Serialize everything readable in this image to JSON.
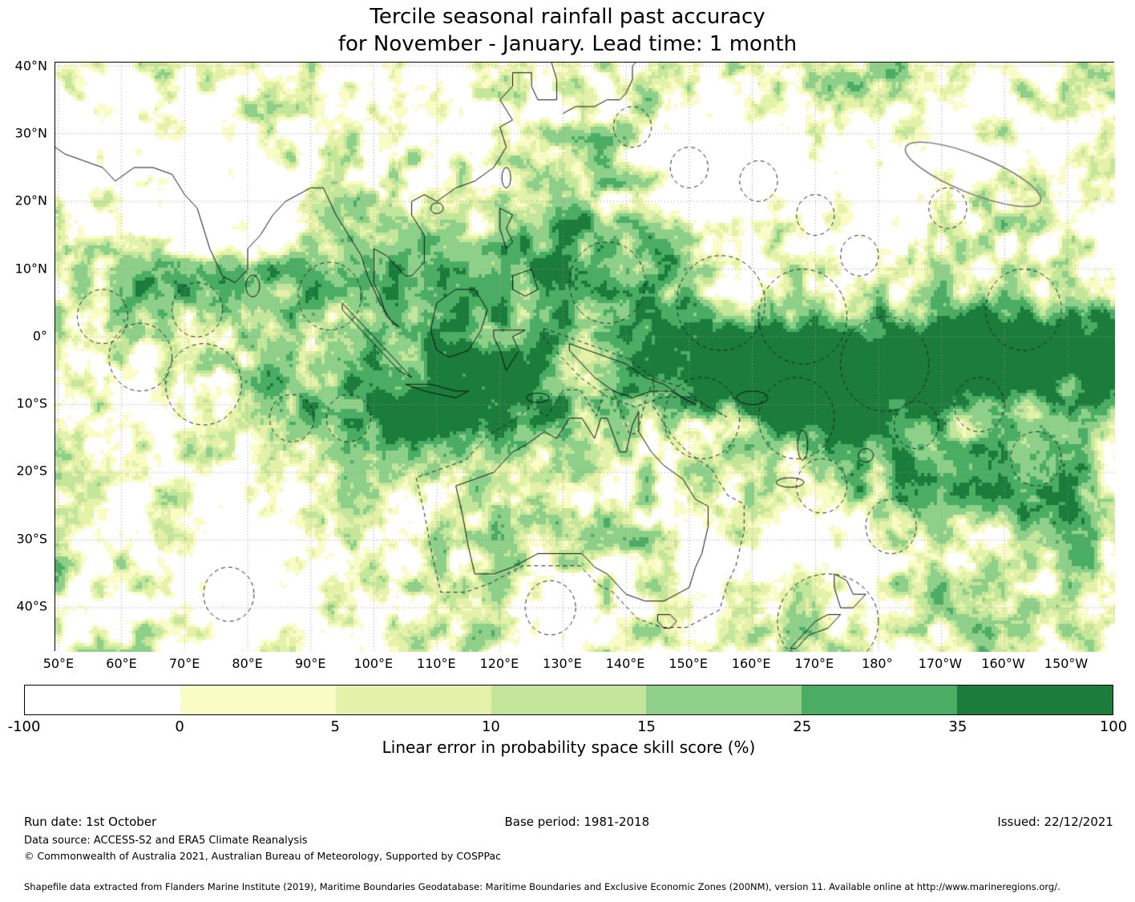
{
  "title": {
    "line1": "Tercile seasonal rainfall past accuracy",
    "line2": "for November - January. Lead time: 1 month"
  },
  "axes": {
    "y_labels": [
      "40°N",
      "30°N",
      "20°N",
      "10°N",
      "0°",
      "10°S",
      "20°S",
      "30°S",
      "40°S"
    ],
    "y_lats": [
      40,
      30,
      20,
      10,
      0,
      -10,
      -20,
      -30,
      -40
    ],
    "x_labels": [
      "50°E",
      "60°E",
      "70°E",
      "80°E",
      "90°E",
      "100°E",
      "110°E",
      "120°E",
      "130°E",
      "140°E",
      "150°E",
      "160°E",
      "170°E",
      "180°",
      "170°W",
      "160°W",
      "150°W"
    ],
    "x_lons": [
      50,
      60,
      70,
      80,
      90,
      100,
      110,
      120,
      130,
      140,
      150,
      160,
      170,
      180,
      190,
      200,
      210
    ]
  },
  "map": {
    "lon_min": 49.5,
    "lon_max": 217.5,
    "lat_min": -46.5,
    "lat_max": 40.5
  },
  "colorbar": {
    "label": "Linear error in probability space skill score (%)",
    "tick_labels": [
      "-100",
      "0",
      "5",
      "10",
      "15",
      "25",
      "35",
      "100"
    ],
    "tick_values": [
      -100,
      0,
      5,
      10,
      15,
      25,
      35,
      100
    ],
    "colors": [
      "#ffffff",
      "#f9fcc5",
      "#e3f2a8",
      "#c3e69a",
      "#8ed089",
      "#4bad63",
      "#1b7c3c"
    ]
  },
  "footer": {
    "run_date": "Run date: 1st October",
    "base_period": "Base period: 1981-2018",
    "issued": "Issued: 22/12/2021",
    "data_source": "Data source: ACCESS-S2 and ERA5 Climate Reanalysis",
    "copyright": "© Commonwealth of Australia 2021, Australian Bureau of Meteorology, Supported by COSPPac",
    "shapefile": "Shapefile data extracted from Flanders Marine Institute (2019), Maritime Boundaries Geodatabase: Maritime Boundaries and Exclusive Economic Zones (200NM), version 11. Available online at http://www.marineregions.org/."
  },
  "chart_data": {
    "type": "heatmap",
    "title": "Tercile seasonal rainfall past accuracy for November - January. Lead time: 1 month",
    "value_label": "Linear error in probability space skill score (%)",
    "x_tick_labels": [
      "50°E",
      "60°E",
      "70°E",
      "80°E",
      "90°E",
      "100°E",
      "110°E",
      "120°E",
      "130°E",
      "140°E",
      "150°E",
      "160°E",
      "170°E",
      "180°",
      "170°W",
      "160°W",
      "150°W"
    ],
    "y_tick_labels": [
      "40°N",
      "30°N",
      "20°N",
      "10°N",
      "0°",
      "10°S",
      "20°S",
      "30°S",
      "40°S"
    ],
    "lon_range_deg_east": [
      50,
      210
    ],
    "lat_range_deg": [
      -45,
      40
    ],
    "grid": "10-degree dotted graticule",
    "legend_position": "bottom horizontal colorbar, 7 equal segments with non-linear tick values",
    "value_bins": [
      {
        "range": [
          -100,
          0
        ],
        "color": "#ffffff"
      },
      {
        "range": [
          0,
          5
        ],
        "color": "#f9fcc5"
      },
      {
        "range": [
          5,
          10
        ],
        "color": "#e3f2a8"
      },
      {
        "range": [
          10,
          15
        ],
        "color": "#c3e69a"
      },
      {
        "range": [
          15,
          25
        ],
        "color": "#8ed089"
      },
      {
        "range": [
          25,
          35
        ],
        "color": "#4bad63"
      },
      {
        "range": [
          35,
          100
        ],
        "color": "#1b7c3c"
      }
    ],
    "high_skill_regions": [
      {
        "region": "Equatorial western-central Pacific, ~5°N-10°S east of 150°E",
        "approx_score": "35-100"
      },
      {
        "region": "Maritime Continent: Indonesia, Philippines, New Guinea seas",
        "approx_score": "15-35"
      },
      {
        "region": "South-east Indian Ocean band ~5°S-15°S, 85°E-125°E",
        "approx_score": "25-35"
      },
      {
        "region": "South Pacific Convergence Zone toward 20°S near 180°-160°W",
        "approx_score": "25-100"
      },
      {
        "region": "Northern Indian Ocean band ~5°N-10°N, 55°E-100°E",
        "approx_score": "15-25"
      },
      {
        "region": "Inland southern Australia",
        "approx_score": "10-25"
      }
    ],
    "low_skill_regions": [
      {
        "region": "Interior India and north-west corner (Arabian side)",
        "approx_score": "-100-0"
      },
      {
        "region": "Subtropical north-west Pacific ~20°N-30°N",
        "approx_score": "-100-5"
      },
      {
        "region": "Tasman Sea ~30°S-40°S",
        "approx_score": "-100-5"
      },
      {
        "region": "Scattered mid-ocean white patches",
        "approx_score": "-100-0"
      }
    ],
    "overlays": [
      "black coastlines",
      "dashed maritime boundary / EEZ outlines throughout oceans",
      "solid grey outline around Hawaiian EEZ at top right"
    ]
  }
}
